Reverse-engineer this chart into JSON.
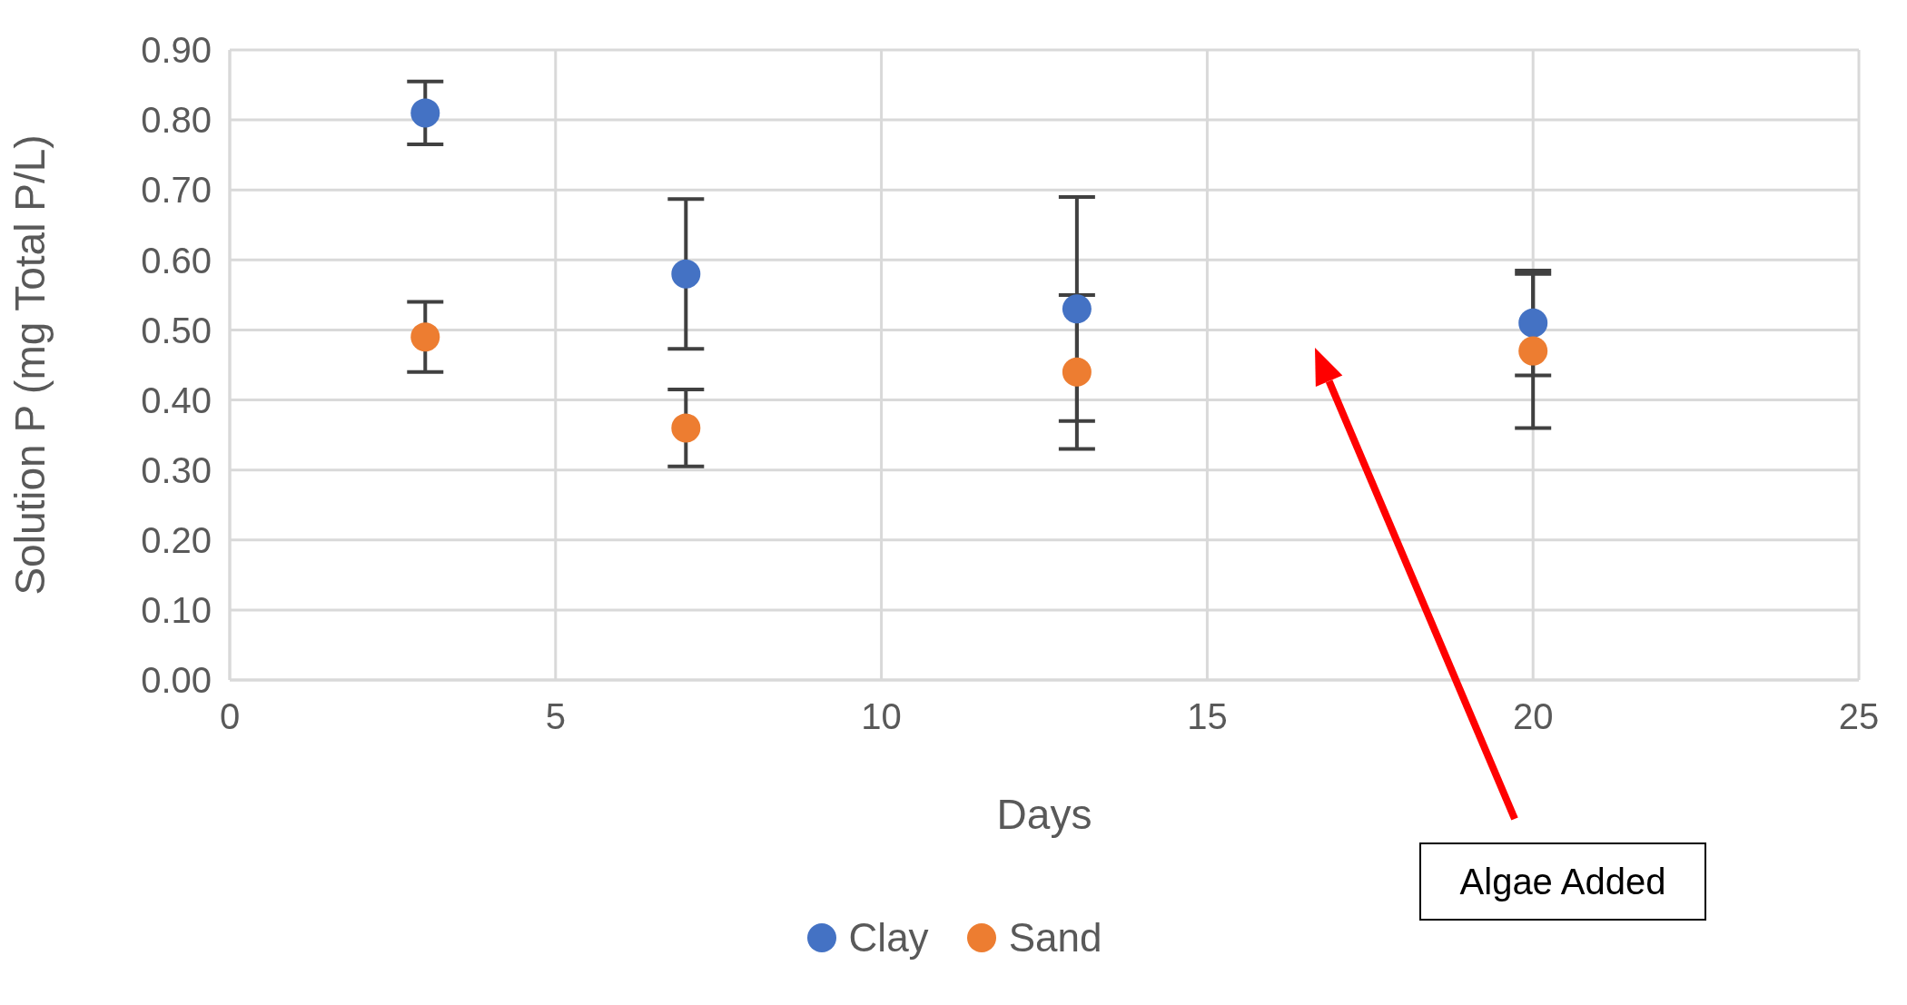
{
  "chart_data": {
    "type": "scatter",
    "xlabel": "Days",
    "ylabel": "Solution P (mg Total P/L)",
    "x": [
      3,
      7,
      13,
      20
    ],
    "series": [
      {
        "name": "Clay",
        "color": "#4472c4",
        "values": [
          0.81,
          0.58,
          0.53,
          0.51
        ],
        "errors": [
          0.045,
          0.107,
          0.16,
          0.075
        ]
      },
      {
        "name": "Sand",
        "color": "#ed7d31",
        "values": [
          0.49,
          0.36,
          0.44,
          0.47
        ],
        "errors": [
          0.05,
          0.055,
          0.11,
          0.11
        ]
      }
    ],
    "xlim": [
      0,
      25
    ],
    "xticks": [
      0,
      5,
      10,
      15,
      20,
      25
    ],
    "ylim": [
      0,
      0.9
    ],
    "yticks": [
      {
        "value": 0,
        "label": "0.00"
      },
      {
        "value": 0.1,
        "label": "0.10"
      },
      {
        "value": 0.2,
        "label": "0.20"
      },
      {
        "value": 0.3,
        "label": "0.30"
      },
      {
        "value": 0.4,
        "label": "0.40"
      },
      {
        "value": 0.5,
        "label": "0.50"
      },
      {
        "value": 0.6,
        "label": "0.60"
      },
      {
        "value": 0.7,
        "label": "0.70"
      },
      {
        "value": 0.8,
        "label": "0.80"
      },
      {
        "value": 0.9,
        "label": "0.90"
      }
    ],
    "grid": true,
    "legend": "bottom",
    "marker": "circle",
    "annotations": [
      "Algae Added"
    ]
  }
}
